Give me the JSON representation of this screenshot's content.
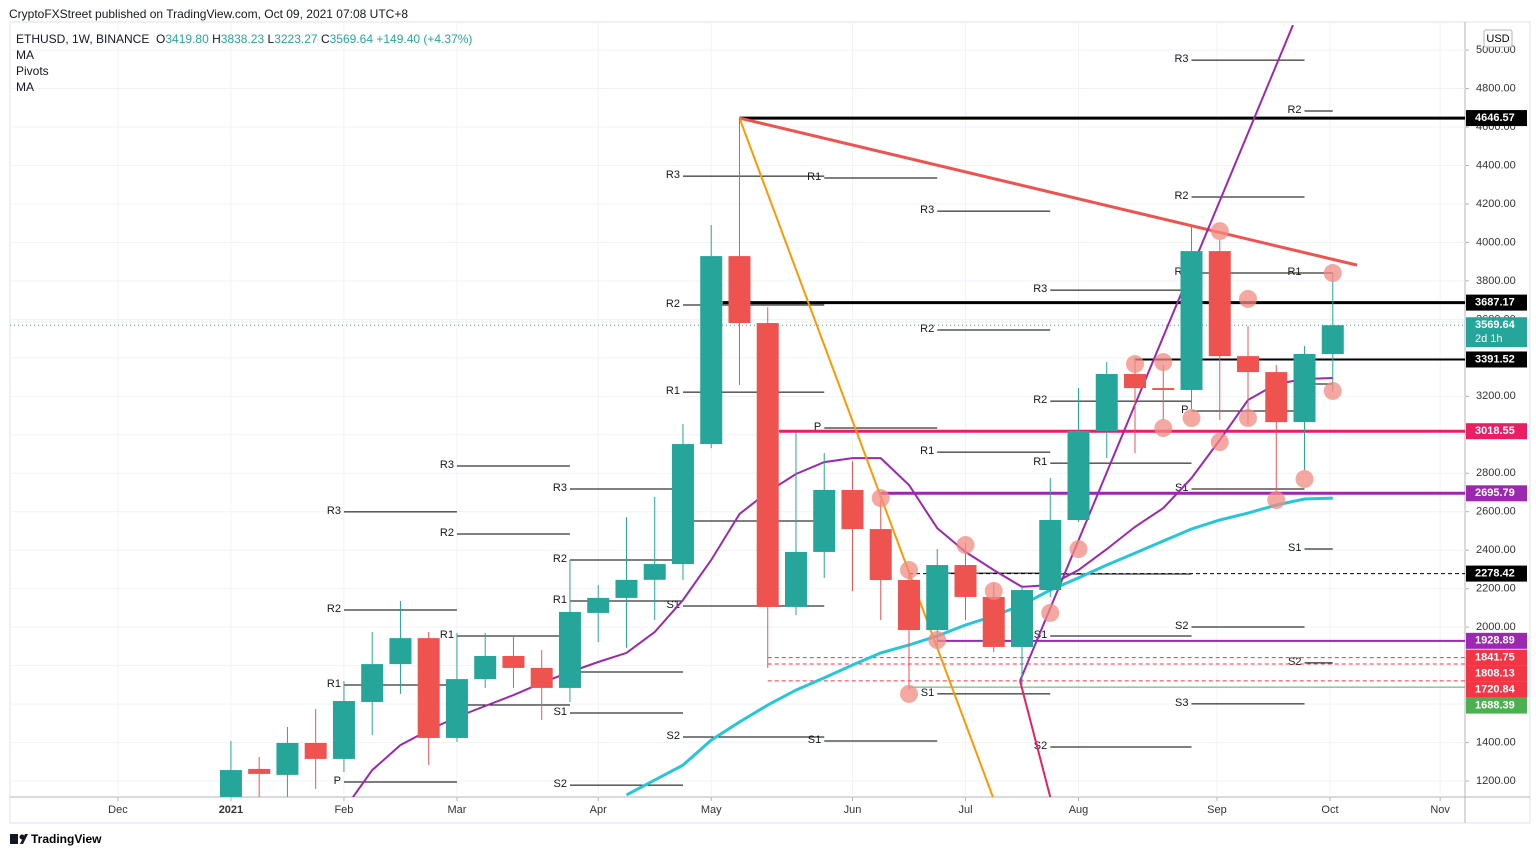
{
  "chart_data": {
    "type": "candlestick",
    "published": "CryptoFXStreet published on TradingView.com, Oct 09, 2021 07:08 UTC+8",
    "symbol": "ETHUSD, 1W, BINANCE",
    "ohlc": [
      {
        "key": "O",
        "value": "3419.80"
      },
      {
        "key": "H",
        "value": "3838.23"
      },
      {
        "key": "L",
        "value": "3223.27"
      },
      {
        "key": "C",
        "value": "3569.64"
      }
    ],
    "change": "+149.40 (+4.37%)",
    "currency": "USD",
    "countdown": "2d 1h",
    "brand": "TradingView",
    "colors": {
      "up": "#26a69a",
      "down": "#ef5350"
    },
    "xlim": [
      -7.82,
      43.68
    ],
    "ylim": [
      1117,
      5146
    ],
    "xticks": [
      {
        "value": -4,
        "label": "Dec"
      },
      {
        "value": 0,
        "label": "2021"
      },
      {
        "value": 4,
        "label": "Feb"
      },
      {
        "value": 8,
        "label": "Mar"
      },
      {
        "value": 13,
        "label": "Apr"
      },
      {
        "value": 17,
        "label": "May"
      },
      {
        "value": 22,
        "label": "Jun"
      },
      {
        "value": 26,
        "label": "Jul"
      },
      {
        "value": 30,
        "label": "Aug"
      },
      {
        "value": 34.9,
        "label": "Sep"
      },
      {
        "value": 38.9,
        "label": "Oct"
      },
      {
        "value": 42.8,
        "label": "Nov"
      }
    ],
    "yticks": [
      {
        "value": 1200,
        "label": "1200.00"
      },
      {
        "value": 1400,
        "label": "1400.00"
      },
      {
        "value": 1600,
        "label": "1600.00"
      },
      {
        "value": 1800,
        "label": "1800.00"
      },
      {
        "value": 2000,
        "label": "2000.00"
      },
      {
        "value": 2200,
        "label": "2200.00"
      },
      {
        "value": 2400,
        "label": "2400.00"
      },
      {
        "value": 2600,
        "label": "2600.00"
      },
      {
        "value": 2800,
        "label": "2800.00"
      },
      {
        "value": 3000,
        "label": "3000.00"
      },
      {
        "value": 3200,
        "label": "3200.00"
      },
      {
        "value": 3400,
        "label": "3400.00"
      },
      {
        "value": 3600,
        "label": "3600.00"
      },
      {
        "value": 3800,
        "label": "3800.00"
      },
      {
        "value": 4000,
        "label": "4000.00"
      },
      {
        "value": 4200,
        "label": "4200.00"
      },
      {
        "value": 4400,
        "label": "4400.00"
      },
      {
        "value": 4600,
        "label": "4600.00"
      },
      {
        "value": 4800,
        "label": "4800.00"
      },
      {
        "value": 5000,
        "label": "5000.00"
      }
    ],
    "open": [
      1100,
      1263,
      1232,
      1398,
      1315,
      1611,
      1808,
      1943,
      1424,
      1730,
      1850,
      1788,
      1684,
      2074,
      2152,
      2246,
      2328,
      2952,
      3929,
      3581,
      2105,
      2391,
      2713,
      2510,
      2245,
      1985,
      2323,
      2157,
      1897,
      2193,
      2557,
      3020,
      3316,
      3243,
      3233,
      3955,
      3409,
      3326,
      3066,
      3419.8
    ],
    "high": [
      1408,
      1325,
      1481,
      1575,
      1720,
      1975,
      2136,
      1975,
      1970,
      1970,
      1954,
      1881,
      2349,
      2219,
      2572,
      2677,
      3056,
      4090,
      4646.57,
      3664,
      3014,
      2905,
      2864,
      2661,
      2297,
      2406,
      2437,
      2230,
      2219,
      2775,
      3243,
      3378,
      3404,
      3363,
      4080,
      4012,
      3565,
      3363,
      3461,
      3838.23
    ],
    "low": [
      1000,
      1090,
      1100,
      1159,
      1247,
      1440,
      1653,
      1284,
      1403,
      1684,
      1684,
      1517,
      1611,
      1923,
      1892,
      2037,
      2245,
      2931,
      3259,
      1788,
      2063,
      2256,
      2188,
      2037,
      1673,
      1907,
      2037,
      1871,
      1699,
      2157,
      2547,
      2879,
      2905,
      3077,
      3134,
      3077,
      3056,
      2708,
      2817,
      3223.27
    ],
    "close": [
      1257,
      1237,
      1398,
      1315,
      1616,
      1808,
      1943,
      1424,
      1730,
      1850,
      1788,
      1684,
      2079,
      2152,
      2246,
      2328,
      2952,
      3929,
      3581,
      2105,
      2391,
      2713,
      2510,
      2245,
      1985,
      2323,
      2157,
      1897,
      2193,
      2557,
      3020,
      3316,
      3243,
      3233,
      3955,
      3409,
      3326,
      3066,
      3420,
      3569.64
    ],
    "series": [
      {
        "name": "MA",
        "color": "#9c27b0",
        "values": [
          null,
          null,
          null,
          null,
          1050,
          1257,
          1387,
          1465,
          1533,
          1590,
          1647,
          1710,
          1767,
          1819,
          1866,
          1975,
          2141,
          2349,
          2588,
          2703,
          2796,
          2858,
          2879,
          2879,
          2739,
          2515,
          2391,
          2297,
          2209,
          2219,
          2297,
          2406,
          2521,
          2619,
          2775,
          2973,
          3181,
          3264,
          3290,
          3295
        ]
      },
      {
        "name": "MA",
        "color": "#26c6da",
        "values": [
          null,
          null,
          null,
          null,
          null,
          null,
          null,
          null,
          null,
          null,
          null,
          null,
          null,
          null,
          1128,
          1205,
          1283,
          1413,
          1507,
          1595,
          1673,
          1736,
          1803,
          1866,
          1907,
          1954,
          2011,
          2058,
          2115,
          2193,
          2256,
          2323,
          2385,
          2448,
          2510,
          2557,
          2593,
          2635,
          2666,
          2671
        ]
      }
    ],
    "pivots": {
      "name": "Pivots",
      "lines": [
        {
          "label": "P",
          "value": 1195,
          "from": 4,
          "to": 8
        },
        {
          "label": "R1",
          "value": 1699,
          "from": 4,
          "to": 8
        },
        {
          "label": "R2",
          "value": 2089,
          "from": 4,
          "to": 8
        },
        {
          "label": "R3",
          "value": 2599,
          "from": 4,
          "to": 8
        },
        {
          "label": "P",
          "value": 1595,
          "from": 8,
          "to": 12
        },
        {
          "label": "R1",
          "value": 1954,
          "from": 8,
          "to": 12
        },
        {
          "label": "R2",
          "value": 2484,
          "from": 8,
          "to": 12
        },
        {
          "label": "R3",
          "value": 2838,
          "from": 8,
          "to": 12
        },
        {
          "label": "S2",
          "value": 1179,
          "from": 12,
          "to": 16
        },
        {
          "label": "S1",
          "value": 1554,
          "from": 12,
          "to": 16
        },
        {
          "label": "P",
          "value": 1767,
          "from": 12,
          "to": 16
        },
        {
          "label": "R1",
          "value": 2136,
          "from": 12,
          "to": 16
        },
        {
          "label": "R2",
          "value": 2349,
          "from": 12,
          "to": 16
        },
        {
          "label": "R3",
          "value": 2718,
          "from": 12,
          "to": 16
        },
        {
          "label": "S2",
          "value": 1429,
          "from": 16,
          "to": 21
        },
        {
          "label": "S1",
          "value": 2110,
          "from": 16,
          "to": 21
        },
        {
          "label": "P",
          "value": 2552,
          "from": 16,
          "to": 21
        },
        {
          "label": "R1",
          "value": 3222,
          "from": 16,
          "to": 21
        },
        {
          "label": "R2",
          "value": 3675,
          "from": 16,
          "to": 21
        },
        {
          "label": "R3",
          "value": 4345,
          "from": 16,
          "to": 21
        },
        {
          "label": "S1",
          "value": 1408,
          "from": 21,
          "to": 25
        },
        {
          "label": "P",
          "value": 3035,
          "from": 21,
          "to": 25
        },
        {
          "label": "R1",
          "value": 4335,
          "from": 21,
          "to": 25
        },
        {
          "label": "S1",
          "value": 1653,
          "from": 25,
          "to": 29
        },
        {
          "label": "P",
          "value": 2281,
          "from": 25,
          "to": 29
        },
        {
          "label": "R1",
          "value": 2910,
          "from": 25,
          "to": 29
        },
        {
          "label": "R2",
          "value": 3545,
          "from": 25,
          "to": 29
        },
        {
          "label": "R3",
          "value": 4163,
          "from": 25,
          "to": 29
        },
        {
          "label": "S2",
          "value": 1377,
          "from": 29,
          "to": 34
        },
        {
          "label": "S1",
          "value": 1954,
          "from": 29,
          "to": 34
        },
        {
          "label": "P",
          "value": 2276,
          "from": 29,
          "to": 34
        },
        {
          "label": "R1",
          "value": 2853,
          "from": 29,
          "to": 34
        },
        {
          "label": "R2",
          "value": 3175,
          "from": 29,
          "to": 34
        },
        {
          "label": "R3",
          "value": 3752,
          "from": 29,
          "to": 34
        },
        {
          "label": "S3",
          "value": 1601,
          "from": 34,
          "to": 38
        },
        {
          "label": "S2",
          "value": 2001,
          "from": 34,
          "to": 38
        },
        {
          "label": "S1",
          "value": 2718,
          "from": 34,
          "to": 38
        },
        {
          "label": "P",
          "value": 3124,
          "from": 34,
          "to": 38
        },
        {
          "label": "R1",
          "value": 3841,
          "from": 34,
          "to": 38
        },
        {
          "label": "R2",
          "value": 4236,
          "from": 34,
          "to": 38
        },
        {
          "label": "R3",
          "value": 4948,
          "from": 34,
          "to": 38
        },
        {
          "label": "S2",
          "value": 1814,
          "from": 38,
          "to": 39
        },
        {
          "label": "S1",
          "value": 2406,
          "from": 38,
          "to": 39
        },
        {
          "label": "P",
          "value": 3264,
          "from": 38,
          "to": 39
        },
        {
          "label": "R1",
          "value": 3841,
          "from": 38,
          "to": 39
        },
        {
          "label": "R2",
          "value": 4683,
          "from": 38,
          "to": 39
        }
      ]
    },
    "levels": [
      {
        "value": 4646.57,
        "color": "#000000",
        "width": 3,
        "dash": false,
        "from": 18
      },
      {
        "value": 3687.17,
        "color": "#000000",
        "width": 3,
        "dash": false,
        "from": 17.4
      },
      {
        "value": 3391.52,
        "color": "#000000",
        "width": 2,
        "dash": false,
        "from": 32
      },
      {
        "value": 3018.55,
        "color": "#e91e63",
        "width": 3,
        "dash": false,
        "from": 19.4
      },
      {
        "value": 2695.79,
        "color": "#9c27b0",
        "width": 3,
        "dash": false,
        "from": 23
      },
      {
        "value": 2278.42,
        "color": "#000000",
        "width": 1,
        "dash": true,
        "from": 24
      },
      {
        "value": 1928.89,
        "color": "#9c27b0",
        "width": 2,
        "dash": false,
        "from": 25
      },
      {
        "value": 1841.75,
        "color": "#f23645",
        "width": 1,
        "dash": true,
        "from": 19
      },
      {
        "value": 1808.13,
        "color": "#f23645",
        "width": 1,
        "dash": true,
        "from": 19
      },
      {
        "value": 1720.84,
        "color": "#f23645",
        "width": 1,
        "dash": true,
        "from": 19
      },
      {
        "value": 1688.39,
        "color": "#4caf50",
        "width": 1,
        "dash": false,
        "from": 24
      }
    ],
    "trendlines": [
      {
        "color": "#ef5350",
        "width": 3,
        "from": [
          18,
          4646.57
        ],
        "to": [
          39.86,
          3882
        ]
      },
      {
        "color": "#ff9800",
        "width": 2,
        "from": [
          18,
          4646.57
        ],
        "to": [
          26.97,
          1117
        ]
      },
      {
        "color": "#9c27b0",
        "width": 2,
        "from": [
          27.93,
          1720.84
        ],
        "to": [
          37.59,
          5130
        ]
      },
      {
        "color": "#e91e63",
        "width": 2,
        "from": [
          27.93,
          1720.84
        ],
        "to": [
          29,
          1117
        ]
      }
    ],
    "markers": [
      [
        23,
        2671
      ],
      [
        24,
        2297
      ],
      [
        26,
        2427
      ],
      [
        27,
        2188
      ],
      [
        25,
        1933
      ],
      [
        24,
        1653
      ],
      [
        29,
        2074
      ],
      [
        30,
        2406
      ],
      [
        32,
        3368
      ],
      [
        33,
        3378
      ],
      [
        33,
        3035
      ],
      [
        34,
        3087
      ],
      [
        35,
        4059
      ],
      [
        35,
        2962
      ],
      [
        36,
        3706
      ],
      [
        36,
        3087
      ],
      [
        37,
        2661
      ],
      [
        38,
        2770
      ],
      [
        39,
        3841
      ],
      [
        39,
        3228
      ]
    ]
  }
}
